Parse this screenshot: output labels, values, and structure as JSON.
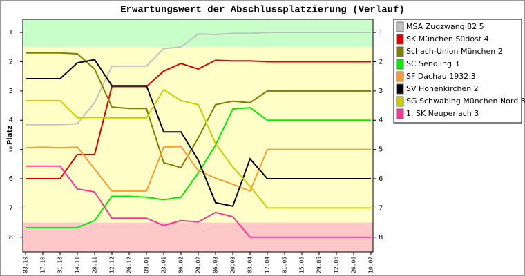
{
  "chart_data": {
    "type": "line",
    "title": "Erwartungswert der Abschlussplatzierung (Verlauf)",
    "ylabel": "Platz",
    "categories": [
      "03.10",
      "17.10",
      "31.10",
      "14.11",
      "28.11",
      "12.12",
      "26.12",
      "09.01",
      "23.01",
      "06.02",
      "20.02",
      "06.03",
      "20.03",
      "03.04",
      "17.04",
      "01.05",
      "15.05",
      "29.05",
      "12.06",
      "26.06",
      "10.07"
    ],
    "ylim": [
      0.55,
      8.5
    ],
    "y_inverted": true,
    "yticks": [
      1,
      2,
      3,
      4,
      5,
      6,
      7,
      8
    ],
    "bands": [
      {
        "range": [
          0.55,
          1.5
        ],
        "color": "#c8ffc8"
      },
      {
        "range": [
          1.5,
          7.5
        ],
        "color": "#ffffc8"
      },
      {
        "range": [
          7.5,
          8.5
        ],
        "color": "#ffc8c8"
      }
    ],
    "series": [
      {
        "name": "MSA Zugzwang 82 5",
        "color": "#c0c0c0",
        "values": [
          4.15,
          4.15,
          4.15,
          4.12,
          3.4,
          2.15,
          2.15,
          2.15,
          1.55,
          1.5,
          1.05,
          1.07,
          1.03,
          1.03,
          1.0,
          1.0,
          1.0,
          1.0,
          1.0,
          1.0,
          1.0
        ]
      },
      {
        "name": "SK München Südost 4",
        "color": "#e00000",
        "values": [
          6.0,
          6.0,
          6.0,
          5.17,
          5.17,
          2.85,
          2.85,
          2.85,
          2.32,
          2.06,
          2.25,
          1.95,
          1.97,
          1.97,
          2.0,
          2.0,
          2.0,
          2.0,
          2.0,
          2.0,
          2.0
        ]
      },
      {
        "name": "Schach-Union München 2",
        "color": "#808000",
        "values": [
          1.7,
          1.7,
          1.7,
          1.73,
          2.25,
          3.55,
          3.6,
          3.6,
          5.45,
          5.62,
          4.6,
          3.47,
          3.35,
          3.4,
          3.0,
          3.0,
          3.0,
          3.0,
          3.0,
          3.0,
          3.0
        ]
      },
      {
        "name": "SC Sendling 3",
        "color": "#00ee00",
        "values": [
          7.67,
          7.67,
          7.67,
          7.67,
          7.43,
          6.6,
          6.6,
          6.63,
          6.72,
          6.63,
          5.8,
          4.85,
          3.62,
          3.57,
          4.0,
          4.0,
          4.0,
          4.0,
          4.0,
          4.0,
          4.0
        ]
      },
      {
        "name": "SF Dachau 1932 3",
        "color": "#ff9933",
        "values": [
          4.94,
          4.92,
          4.94,
          4.92,
          5.67,
          6.42,
          6.42,
          6.42,
          4.92,
          4.9,
          5.72,
          5.98,
          6.19,
          6.42,
          5.0,
          5.0,
          5.0,
          5.0,
          5.0,
          5.0,
          5.0
        ]
      },
      {
        "name": "SV Höhenkirchen 2",
        "color": "#000000",
        "values": [
          2.58,
          2.58,
          2.58,
          2.04,
          1.93,
          2.82,
          2.82,
          2.82,
          4.4,
          4.4,
          5.36,
          6.82,
          6.94,
          5.32,
          6.0,
          6.0,
          6.0,
          6.0,
          6.0,
          6.0,
          6.0
        ]
      },
      {
        "name": "SG Schwabing München Nord 3",
        "color": "#cccc00",
        "values": [
          3.33,
          3.33,
          3.33,
          3.92,
          3.9,
          3.92,
          3.92,
          3.92,
          2.96,
          3.33,
          3.47,
          4.8,
          5.6,
          6.26,
          7.0,
          7.0,
          7.0,
          7.0,
          7.0,
          7.0,
          7.0
        ]
      },
      {
        "name": "1. SK Neuperlach 3",
        "color": "#ff3399",
        "values": [
          5.57,
          5.57,
          5.57,
          6.35,
          6.45,
          7.35,
          7.35,
          7.35,
          7.6,
          7.43,
          7.48,
          7.15,
          7.3,
          8.0,
          8.0,
          8.0,
          8.0,
          8.0,
          8.0,
          8.0,
          8.0
        ]
      }
    ]
  }
}
